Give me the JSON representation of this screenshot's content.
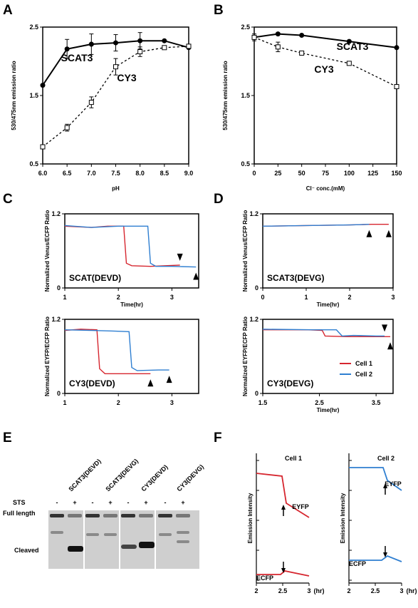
{
  "figure": {
    "panels": [
      "A",
      "B",
      "C",
      "D",
      "E",
      "F"
    ]
  },
  "colors": {
    "cell1": "#d6262f",
    "cell2": "#2f7fd1"
  },
  "chart_data": [
    {
      "id": "A",
      "type": "line",
      "xlabel": "pH",
      "ylabel": "530/475nm emission ratio",
      "xlim": [
        6.0,
        9.0
      ],
      "ylim": [
        0.5,
        2.5
      ],
      "xticks": [
        "6.0",
        "6.5",
        "7.0",
        "7.5",
        "8.0",
        "8.5",
        "9.0"
      ],
      "yticks": [
        "0.5",
        "1.5",
        "2.5"
      ],
      "series": [
        {
          "name": "SCAT3",
          "x": [
            6.0,
            6.5,
            7.0,
            7.5,
            8.0,
            8.5,
            9.0
          ],
          "y": [
            1.65,
            2.18,
            2.25,
            2.27,
            2.3,
            2.3,
            2.2
          ],
          "err": [
            0,
            0.14,
            0.15,
            0.12,
            0.12,
            0,
            0
          ]
        },
        {
          "name": "CY3",
          "x": [
            6.0,
            6.5,
            7.0,
            7.5,
            8.0,
            8.5,
            9.0
          ],
          "y": [
            0.75,
            1.03,
            1.4,
            1.92,
            2.14,
            2.2,
            2.22
          ],
          "err": [
            0,
            0.05,
            0.08,
            0.12,
            0.07,
            0,
            0
          ]
        }
      ]
    },
    {
      "id": "B",
      "type": "line",
      "xlabel": "Cl⁻ conc.(mM)",
      "ylabel": "530/475nm emission ratio",
      "xlim": [
        0,
        150
      ],
      "ylim": [
        0.5,
        2.5
      ],
      "xticks": [
        "0",
        "25",
        "50",
        "75",
        "100",
        "125",
        "150"
      ],
      "yticks": [
        "0.5",
        "1.5",
        "2.5"
      ],
      "series": [
        {
          "name": "SCAT3",
          "x": [
            0,
            25,
            50,
            100,
            150
          ],
          "y": [
            2.35,
            2.4,
            2.38,
            2.29,
            2.2
          ],
          "err": [
            0,
            0,
            0,
            0,
            0
          ]
        },
        {
          "name": "CY3",
          "x": [
            0,
            25,
            50,
            100,
            150
          ],
          "y": [
            2.35,
            2.21,
            2.12,
            1.97,
            1.63
          ],
          "err": [
            0.05,
            0.07,
            0,
            0,
            0
          ]
        }
      ]
    },
    {
      "id": "C_top",
      "type": "line",
      "ylabel": "Normalized Venus/ECFP Ratio",
      "xlabel": "Time(hr)",
      "label": "SCAT(DEVD)",
      "xlim": [
        1,
        3.5
      ],
      "ylim": [
        0,
        1.2
      ],
      "xticks": [
        "1",
        "2",
        "3"
      ],
      "yticks": [
        "0",
        "1.2"
      ],
      "series": [
        {
          "name": "Cell 1",
          "x": [
            1,
            1.5,
            1.8,
            2.1,
            2.15,
            2.25,
            2.6,
            3.15
          ],
          "y": [
            1.0,
            0.98,
            1.0,
            1.0,
            0.4,
            0.36,
            0.35,
            0.37
          ]
        },
        {
          "name": "Cell 2",
          "x": [
            1,
            1.5,
            2.0,
            2.55,
            2.6,
            2.7,
            3.0,
            3.45
          ],
          "y": [
            1.01,
            0.98,
            1.0,
            1.0,
            0.4,
            0.35,
            0.35,
            0.34
          ]
        }
      ]
    },
    {
      "id": "C_bottom",
      "type": "line",
      "ylabel": "Normalized EYFP/ECFP Ratio",
      "xlabel": "",
      "label": "CY3(DEVD)",
      "xlim": [
        1,
        3.5
      ],
      "ylim": [
        0,
        1.2
      ],
      "xticks": [
        "1",
        "2",
        "3"
      ],
      "yticks": [
        "0",
        "1.2"
      ],
      "series": [
        {
          "name": "Cell 1",
          "x": [
            1,
            1.3,
            1.6,
            1.65,
            1.75,
            2.2,
            2.6
          ],
          "y": [
            1.02,
            1.04,
            1.03,
            0.4,
            0.32,
            0.32,
            0.32
          ]
        },
        {
          "name": "Cell 2",
          "x": [
            1,
            1.5,
            1.9,
            2.2,
            2.25,
            2.35,
            2.75,
            2.95
          ],
          "y": [
            1.03,
            1.02,
            1.01,
            1.0,
            0.42,
            0.37,
            0.38,
            0.38
          ]
        }
      ]
    },
    {
      "id": "D_top",
      "type": "line",
      "ylabel": "Normalized Venus/ECFP Ratio",
      "xlabel": "Time(hr)",
      "label": "SCAT3(DEVG)",
      "xlim": [
        0,
        3
      ],
      "ylim": [
        0,
        1.2
      ],
      "xticks": [
        "0",
        "1",
        "2",
        "3"
      ],
      "yticks": [
        "0",
        "1.2"
      ],
      "series": [
        {
          "name": "Cell 1",
          "x": [
            0,
            1,
            2,
            2.5,
            2.9
          ],
          "y": [
            1.0,
            1.01,
            1.02,
            1.03,
            1.03
          ]
        },
        {
          "name": "Cell 2",
          "x": [
            0,
            1,
            2,
            2.45
          ],
          "y": [
            1.0,
            1.01,
            1.02,
            1.03
          ]
        }
      ]
    },
    {
      "id": "D_bottom",
      "type": "line",
      "ylabel": "Normalized EYFP/ECFP Ratio",
      "xlabel": "Time(hr)",
      "label": "CY3(DEVG)",
      "xlim": [
        1.5,
        3.8
      ],
      "ylim": [
        0,
        1.2
      ],
      "xticks": [
        "1.5",
        "2.5",
        "3.5"
      ],
      "yticks": [
        "0",
        "1.2"
      ],
      "series": [
        {
          "name": "Cell 1",
          "x": [
            1.5,
            2.3,
            2.55,
            2.6,
            3.0,
            3.5,
            3.75
          ],
          "y": [
            1.03,
            1.03,
            1.02,
            0.93,
            0.92,
            0.92,
            0.92
          ]
        },
        {
          "name": "Cell 2",
          "x": [
            1.5,
            2.4,
            2.8,
            2.9,
            3.1,
            3.5,
            3.65
          ],
          "y": [
            1.04,
            1.03,
            1.03,
            0.93,
            0.94,
            0.93,
            0.93
          ]
        }
      ],
      "legend": [
        "Cell 1",
        "Cell 2"
      ]
    }
  ],
  "panelE": {
    "lanes": [
      "SCAT3(DEVD)",
      "SCAT3(DEVG)",
      "CY3(DEVD)",
      "CY3(DEVG)"
    ],
    "sts_label": "STS",
    "signs": [
      "-",
      "+",
      "-",
      "+",
      "-",
      "+",
      "-",
      "+"
    ],
    "bands": [
      "Full length",
      "Cleaved"
    ]
  },
  "panelF": {
    "ylabel": "Emission Intensity",
    "xunit": "(hr)",
    "xticks": [
      "2",
      "2.5",
      "3"
    ],
    "cells": [
      {
        "title": "Cell 1",
        "top": "EYFP",
        "bottom": "ECFP",
        "color": "#d6262f"
      },
      {
        "title": "Cell 2",
        "top": "EYFP",
        "bottom": "ECFP",
        "color": "#2f7fd1"
      }
    ]
  }
}
